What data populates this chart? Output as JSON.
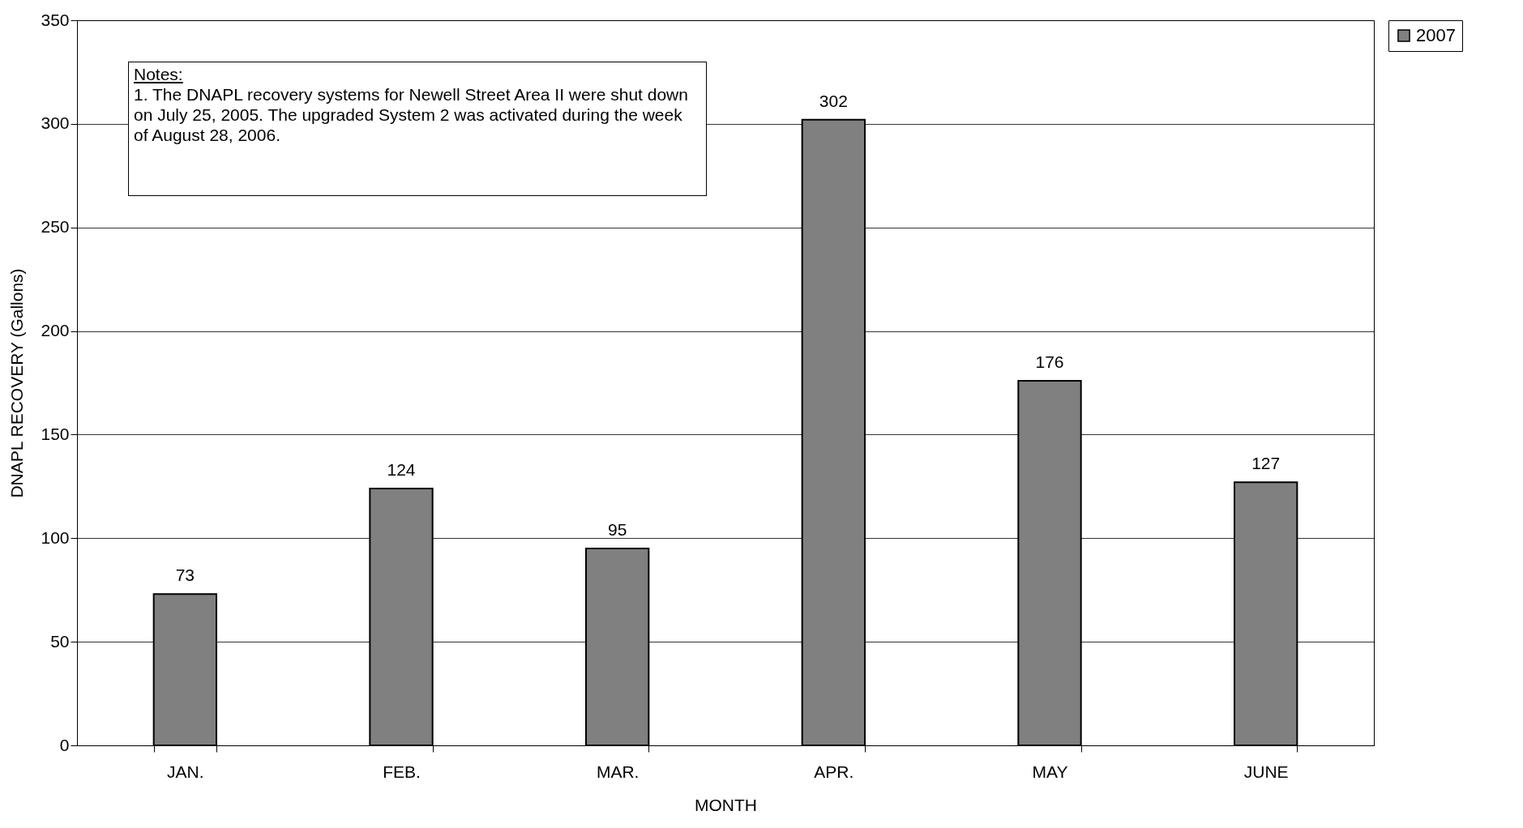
{
  "chart_data": {
    "type": "bar",
    "xlabel": "MONTH",
    "ylabel": "DNAPL RECOVERY (Gallons)",
    "categories": [
      "JAN.",
      "FEB.",
      "MAR.",
      "APR.",
      "MAY",
      "JUNE"
    ],
    "series": [
      {
        "name": "2007",
        "color": "#808080",
        "values": [
          73,
          124,
          95,
          302,
          176,
          127
        ]
      }
    ],
    "ylim": [
      0,
      350
    ],
    "yticks": [
      0,
      50,
      100,
      150,
      200,
      250,
      300,
      350
    ],
    "grid": "y",
    "legend": "right",
    "data_labels": true,
    "annotations": [
      "Notes:",
      "1.  The DNAPL recovery systems for Newell Street Area II were shut down on July 25, 2005.  The upgraded System 2 was activated during the week of August 28, 2006."
    ]
  }
}
